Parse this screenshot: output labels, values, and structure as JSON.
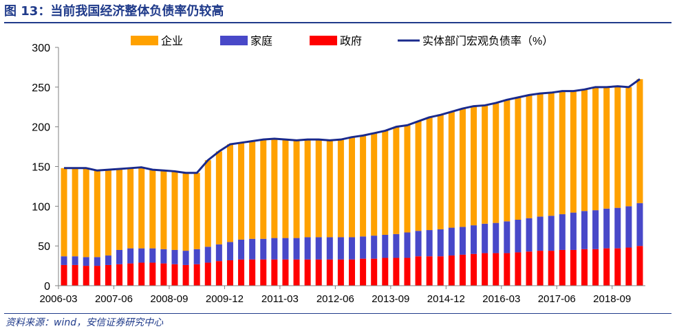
{
  "header": {
    "title": "图 13：当前我国经济整体负债率仍较高"
  },
  "footer": {
    "source": "资料来源：wind，安信证券研究中心"
  },
  "colors": {
    "enterprise": "#ffa100",
    "household": "#4848c8",
    "government": "#ff0000",
    "macro_line": "#1a2a8c",
    "axis": "#808080",
    "title": "#1f3a8a"
  },
  "chart_data": {
    "type": "bar",
    "stacked": true,
    "ylim": [
      0,
      300
    ],
    "yticks": [
      0,
      50,
      100,
      150,
      200,
      250,
      300
    ],
    "xtick_labels": [
      "2006-03",
      "2007-06",
      "2008-09",
      "2009-12",
      "2011-03",
      "2012-06",
      "2013-09",
      "2014-12",
      "2016-03",
      "2017-06",
      "2018-09"
    ],
    "legend": [
      "企业",
      "家庭",
      "政府",
      "实体部门宏观负债率（%）"
    ],
    "categories": [
      "2006-03",
      "2006-06",
      "2006-09",
      "2006-12",
      "2007-03",
      "2007-06",
      "2007-09",
      "2007-12",
      "2008-03",
      "2008-06",
      "2008-09",
      "2008-12",
      "2009-03",
      "2009-06",
      "2009-09",
      "2009-12",
      "2010-03",
      "2010-06",
      "2010-09",
      "2010-12",
      "2011-03",
      "2011-06",
      "2011-09",
      "2011-12",
      "2012-03",
      "2012-06",
      "2012-09",
      "2012-12",
      "2013-03",
      "2013-06",
      "2013-09",
      "2013-12",
      "2014-03",
      "2014-06",
      "2014-09",
      "2014-12",
      "2015-03",
      "2015-06",
      "2015-09",
      "2015-12",
      "2016-03",
      "2016-06",
      "2016-09",
      "2016-12",
      "2017-03",
      "2017-06",
      "2017-09",
      "2017-12",
      "2018-03",
      "2018-06",
      "2018-09",
      "2018-12",
      "2019-03"
    ],
    "series": [
      {
        "name": "政府",
        "values": [
          26,
          26,
          25,
          25,
          26,
          27,
          28,
          29,
          29,
          28,
          27,
          26,
          27,
          29,
          31,
          32,
          33,
          33,
          33,
          33,
          33,
          33,
          33,
          33,
          33,
          33,
          33,
          34,
          34,
          35,
          35,
          35,
          37,
          37,
          37,
          38,
          39,
          40,
          41,
          41,
          41,
          42,
          43,
          44,
          44,
          45,
          45,
          46,
          46,
          47,
          47,
          48,
          50
        ]
      },
      {
        "name": "家庭",
        "values": [
          11,
          11,
          11,
          11,
          12,
          18,
          19,
          18,
          18,
          18,
          18,
          18,
          19,
          20,
          21,
          23,
          25,
          26,
          26,
          27,
          27,
          27,
          28,
          28,
          28,
          28,
          28,
          28,
          29,
          29,
          30,
          32,
          32,
          33,
          34,
          35,
          35,
          36,
          37,
          38,
          40,
          41,
          42,
          43,
          44,
          45,
          47,
          48,
          49,
          50,
          51,
          52,
          54
        ]
      },
      {
        "name": "企业",
        "values": [
          111,
          111,
          112,
          109,
          108,
          102,
          101,
          102,
          99,
          99,
          99,
          98,
          96,
          109,
          117,
          123,
          122,
          123,
          125,
          125,
          124,
          123,
          123,
          123,
          122,
          123,
          126,
          127,
          129,
          131,
          135,
          135,
          138,
          142,
          144,
          146,
          149,
          150,
          149,
          151,
          153,
          154,
          155,
          155,
          155,
          155,
          153,
          153,
          155,
          153,
          153,
          150,
          156
        ]
      }
    ],
    "line": {
      "name": "实体部门宏观负债率（%）",
      "values": [
        148,
        148,
        148,
        145,
        146,
        147,
        148,
        149,
        146,
        145,
        144,
        142,
        142,
        158,
        169,
        178,
        180,
        182,
        184,
        185,
        184,
        183,
        184,
        184,
        183,
        184,
        187,
        189,
        192,
        195,
        200,
        202,
        207,
        212,
        215,
        219,
        223,
        226,
        227,
        230,
        234,
        237,
        240,
        242,
        243,
        245,
        245,
        247,
        250,
        250,
        251,
        250,
        260
      ]
    }
  }
}
